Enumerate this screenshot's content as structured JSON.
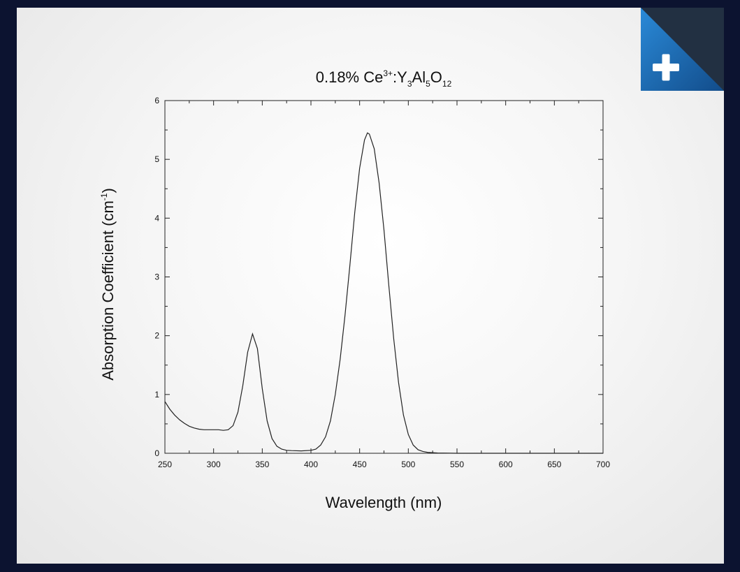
{
  "chart_data": {
    "type": "line",
    "title": {
      "prefix": "0.18% Ce",
      "ce_sup": "3+",
      "sep": ":Y",
      "y_sub": "3",
      "al": "Al",
      "al_sub": "5",
      "o": "O",
      "o_sub": "12"
    },
    "xlabel": "Wavelength (nm)",
    "ylabel": {
      "main": "Absorption Coefficient (cm",
      "sup": "-1",
      "end": ")"
    },
    "xlim": [
      250,
      700
    ],
    "ylim": [
      0,
      6
    ],
    "xticks": [
      250,
      300,
      350,
      400,
      450,
      500,
      550,
      600,
      650,
      700
    ],
    "yticks": [
      0,
      1,
      2,
      3,
      4,
      5,
      6
    ],
    "grid": false,
    "series": [
      {
        "points": [
          [
            250,
            0.88
          ],
          [
            255,
            0.75
          ],
          [
            260,
            0.65
          ],
          [
            265,
            0.57
          ],
          [
            270,
            0.51
          ],
          [
            275,
            0.46
          ],
          [
            280,
            0.43
          ],
          [
            285,
            0.41
          ],
          [
            290,
            0.4
          ],
          [
            295,
            0.4
          ],
          [
            300,
            0.4
          ],
          [
            305,
            0.4
          ],
          [
            310,
            0.39
          ],
          [
            315,
            0.4
          ],
          [
            320,
            0.47
          ],
          [
            325,
            0.7
          ],
          [
            330,
            1.15
          ],
          [
            335,
            1.72
          ],
          [
            340,
            2.03
          ],
          [
            345,
            1.78
          ],
          [
            350,
            1.1
          ],
          [
            355,
            0.55
          ],
          [
            360,
            0.25
          ],
          [
            365,
            0.12
          ],
          [
            370,
            0.07
          ],
          [
            375,
            0.05
          ],
          [
            380,
            0.045
          ],
          [
            390,
            0.04
          ],
          [
            400,
            0.05
          ],
          [
            405,
            0.07
          ],
          [
            410,
            0.14
          ],
          [
            415,
            0.28
          ],
          [
            420,
            0.55
          ],
          [
            425,
            1.0
          ],
          [
            430,
            1.6
          ],
          [
            435,
            2.35
          ],
          [
            440,
            3.2
          ],
          [
            445,
            4.1
          ],
          [
            450,
            4.85
          ],
          [
            455,
            5.33
          ],
          [
            458,
            5.45
          ],
          [
            460,
            5.43
          ],
          [
            465,
            5.18
          ],
          [
            470,
            4.6
          ],
          [
            475,
            3.8
          ],
          [
            480,
            2.85
          ],
          [
            485,
            1.95
          ],
          [
            490,
            1.2
          ],
          [
            495,
            0.65
          ],
          [
            500,
            0.32
          ],
          [
            505,
            0.14
          ],
          [
            510,
            0.06
          ],
          [
            515,
            0.03
          ],
          [
            520,
            0.015
          ],
          [
            530,
            0.005
          ],
          [
            550,
            0.0
          ],
          [
            600,
            0.0
          ],
          [
            650,
            0.0
          ],
          [
            700,
            0.0
          ]
        ]
      }
    ]
  },
  "expand_button": {
    "icon": "plus-icon",
    "color": "#1f6fb8"
  }
}
